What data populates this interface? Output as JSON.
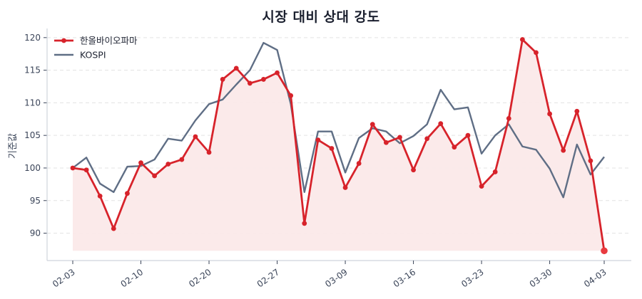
{
  "title": "시장 대비 상대 강도",
  "colors": {
    "stock": "#d7232b",
    "index": "#5f6e85",
    "fill": "#fbe9e9",
    "grid": "#e3e3e3",
    "axis": "#cfd4dc",
    "text": "#3b4559"
  },
  "legend": {
    "items": [
      {
        "label": "한올바이오파마",
        "series": "stock"
      },
      {
        "label": "KOSPI",
        "series": "index"
      }
    ]
  },
  "chart_data": {
    "type": "line",
    "title": "시장 대비 상대 강도",
    "xlabel": "",
    "ylabel": "기준값",
    "ylim": [
      85.8,
      121.4
    ],
    "yticks": [
      90,
      95,
      100,
      105,
      110,
      115,
      120
    ],
    "grid": {
      "y": true,
      "x": false,
      "style": "dashed"
    },
    "legend_position": "upper left",
    "xtick_labels": [
      {
        "index": 0,
        "label": "02-03"
      },
      {
        "index": 5,
        "label": "02-10"
      },
      {
        "index": 10,
        "label": "02-20"
      },
      {
        "index": 15,
        "label": "02-27"
      },
      {
        "index": 20,
        "label": "03-09"
      },
      {
        "index": 25,
        "label": "03-16"
      },
      {
        "index": 30,
        "label": "03-23"
      },
      {
        "index": 35,
        "label": "03-30"
      },
      {
        "index": 39,
        "label": "04-03"
      }
    ],
    "n_points": 40,
    "fill_under": {
      "series": "한올바이오파마",
      "baseline": 87.3
    },
    "series": [
      {
        "name": "한올바이오파마",
        "key": "stock",
        "markers": true,
        "values": [
          100.0,
          99.7,
          95.7,
          90.7,
          96.1,
          100.8,
          98.8,
          100.6,
          101.3,
          104.8,
          102.4,
          113.6,
          115.3,
          113.0,
          113.6,
          114.6,
          111.1,
          91.5,
          104.3,
          103.0,
          97.0,
          100.7,
          106.7,
          103.9,
          104.7,
          99.7,
          104.5,
          106.8,
          103.2,
          105.0,
          97.2,
          99.4,
          107.6,
          119.7,
          117.7,
          108.3,
          102.7,
          108.7,
          101.1,
          87.3
        ]
      },
      {
        "name": "KOSPI",
        "key": "index",
        "markers": false,
        "values": [
          100.0,
          101.6,
          97.6,
          96.3,
          100.2,
          100.3,
          101.3,
          104.5,
          104.2,
          107.3,
          109.8,
          110.5,
          112.8,
          115.0,
          119.2,
          118.1,
          109.8,
          96.3,
          105.6,
          105.6,
          99.3,
          104.6,
          106.1,
          105.6,
          103.8,
          104.9,
          106.7,
          112.0,
          109.0,
          109.3,
          102.2,
          105.0,
          106.7,
          103.3,
          102.8,
          99.9,
          95.5,
          103.6,
          99.0,
          101.7
        ]
      }
    ]
  }
}
